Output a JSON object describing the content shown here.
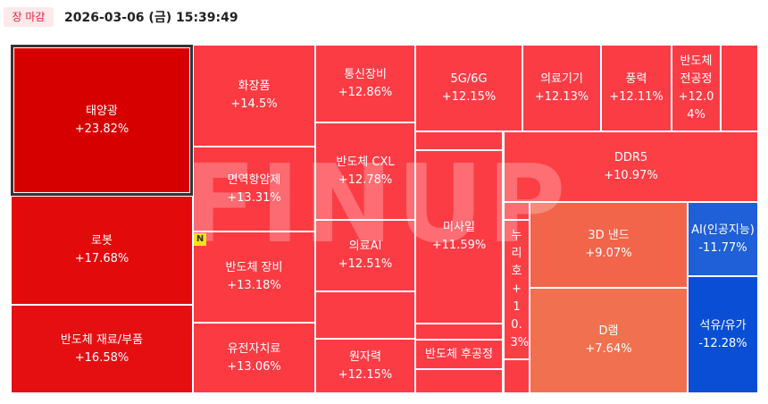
{
  "header": {
    "status": "장 마감",
    "datetime": "2026-03-06 (금) 15:39:49"
  },
  "watermark": "FINUP",
  "badge": "N",
  "tiles": [
    {
      "name": "태양광",
      "change": "+23.82%",
      "color": "#d70000"
    },
    {
      "name": "로봇",
      "change": "+17.68%",
      "color": "#e20a0a"
    },
    {
      "name": "반도체 재료/부품",
      "change": "+16.58%",
      "color": "#e50f12"
    },
    {
      "name": "화장품",
      "change": "+14.5%",
      "color": "#fb3a42"
    },
    {
      "name": "면역항암제",
      "change": "+13.31%",
      "color": "#fb3a42"
    },
    {
      "name": "반도체 장비",
      "change": "+13.18%",
      "color": "#fb3a42"
    },
    {
      "name": "유전자치료",
      "change": "+13.06%",
      "color": "#fb3a42"
    },
    {
      "name": "통신장비",
      "change": "+12.86%",
      "color": "#fc3c45"
    },
    {
      "name": "반도체 CXL",
      "change": "+12.78%",
      "color": "#fc3c45"
    },
    {
      "name": "의료AI",
      "change": "+12.51%",
      "color": "#fc3c45"
    },
    {
      "name": "원자력",
      "change": "+12.15%",
      "color": "#fc3c45"
    },
    {
      "name": "5G/6G",
      "change": "+12.15%",
      "color": "#fc3c45"
    },
    {
      "name": "의료기기",
      "change": "+12.13%",
      "color": "#fc3c45"
    },
    {
      "name": "풍력",
      "change": "+12.11%",
      "color": "#fc3c45"
    },
    {
      "name": "반도체 전공정",
      "change": "+12.04%",
      "color": "#fc3c45"
    },
    {
      "name": "미사일",
      "change": "+11.59%",
      "color": "#fc3c45"
    },
    {
      "name": "반도체 후공정",
      "color": "#fc3c45"
    },
    {
      "name": "DDR5",
      "change": "+10.97%",
      "color": "#fc3f45"
    },
    {
      "name": "누리호",
      "change": "+10.3%",
      "color": "#fc3f45"
    },
    {
      "name": "3D 낸드",
      "change": "+9.07%",
      "color": "#f2654b"
    },
    {
      "name": "D램",
      "change": "+7.64%",
      "color": "#f1704f"
    },
    {
      "name": "AI(인공지능)",
      "change": "-11.77%",
      "color": "#1f5fd8"
    },
    {
      "name": "석유/유가",
      "change": "-12.28%",
      "color": "#0a4ed6"
    }
  ]
}
